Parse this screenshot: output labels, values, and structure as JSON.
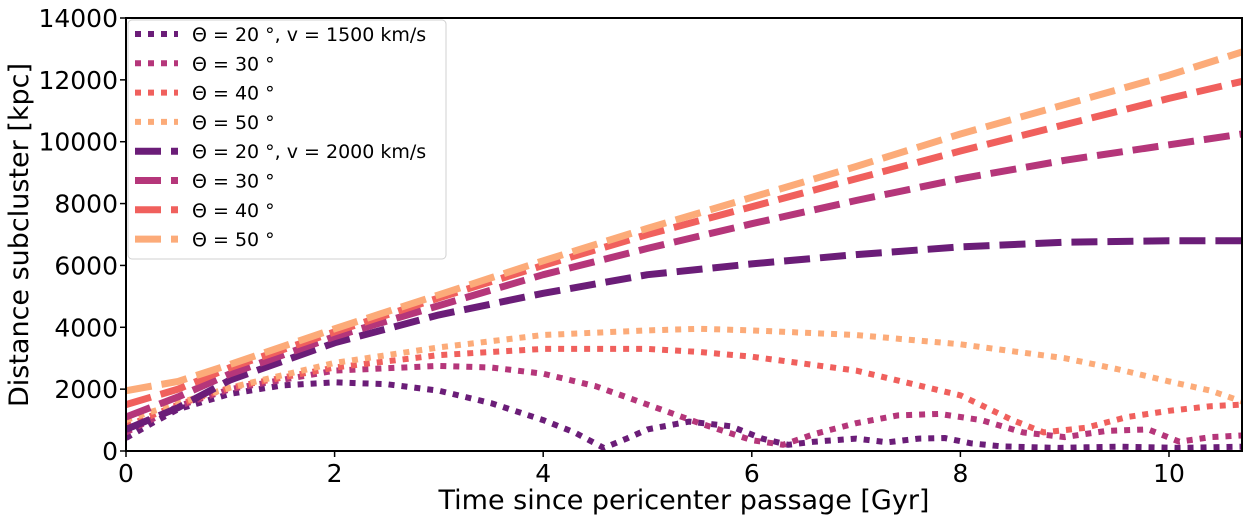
{
  "chart_data": {
    "type": "line",
    "title": "",
    "xlabel": "Time since pericenter passage [Gyr]",
    "ylabel": "Distance subcluster [kpc]",
    "xlim": [
      0,
      10.7
    ],
    "ylim": [
      0,
      14000
    ],
    "xticks": [
      0,
      2,
      4,
      6,
      8,
      10
    ],
    "xtick_labels": [
      "0",
      "2",
      "4",
      "6",
      "8",
      "10"
    ],
    "yticks": [
      0,
      2000,
      4000,
      6000,
      8000,
      10000,
      12000,
      14000
    ],
    "ytick_labels": [
      "0",
      "2000",
      "4000",
      "6000",
      "8000",
      "10000",
      "12000",
      "14000"
    ],
    "grid": false,
    "legend_position": "top-left",
    "colors": {
      "theta20": "#6b1d78",
      "theta30": "#b5367a",
      "theta40": "#f0605d",
      "theta50": "#fcab79",
      "frame": "#000000"
    },
    "series": [
      {
        "name": "Θ = 20$^\\circ$, v = 1500 km/s",
        "legend_label": "Θ = 20 °, v = 1500 km/s",
        "style": "dotted",
        "color_key": "theta20",
        "x": [
          0,
          0.25,
          0.5,
          1,
          1.5,
          2,
          2.5,
          3,
          3.5,
          4,
          4.3,
          4.58,
          4.8,
          5,
          5.4,
          5.8,
          6.1,
          6.35,
          6.6,
          7,
          7.3,
          7.6,
          7.85,
          8.1,
          8.4,
          8.7,
          8.95,
          9.2,
          9.5,
          9.8,
          10.1,
          10.4,
          10.7
        ],
        "y": [
          420,
          900,
          1350,
          1850,
          2120,
          2220,
          2160,
          1950,
          1550,
          1000,
          600,
          100,
          400,
          700,
          950,
          800,
          400,
          200,
          300,
          400,
          280,
          400,
          420,
          250,
          150,
          120,
          100,
          120,
          140,
          120,
          100,
          120,
          140
        ]
      },
      {
        "name": "Θ = 30°",
        "legend_label": "Θ = 30 °",
        "style": "dotted",
        "color_key": "theta30",
        "x": [
          0,
          0.5,
          1,
          2,
          3,
          3.5,
          4,
          4.5,
          5,
          5.5,
          6,
          6.3,
          6.6,
          7,
          7.4,
          7.8,
          8.2,
          8.6,
          9,
          9.4,
          9.8,
          10.1,
          10.4,
          10.7
        ],
        "y": [
          600,
          1450,
          2000,
          2600,
          2750,
          2700,
          2500,
          2100,
          1500,
          900,
          350,
          200,
          550,
          900,
          1150,
          1200,
          1000,
          600,
          450,
          650,
          700,
          300,
          450,
          500
        ]
      },
      {
        "name": "Θ = 40°",
        "legend_label": "Θ = 40 °",
        "style": "dotted",
        "color_key": "theta40",
        "x": [
          0,
          0.5,
          1,
          2,
          3,
          4,
          5,
          5.5,
          6,
          7,
          8,
          8.5,
          8.8,
          9.2,
          9.6,
          10,
          10.4,
          10.7
        ],
        "y": [
          800,
          1500,
          2050,
          2700,
          3100,
          3300,
          3300,
          3200,
          3050,
          2600,
          1800,
          1000,
          600,
          750,
          1100,
          1300,
          1450,
          1500
        ]
      },
      {
        "name": "Θ = 50°",
        "legend_label": "Θ = 50 °",
        "style": "dotted",
        "color_key": "theta50",
        "x": [
          0,
          0.5,
          1,
          2,
          3,
          4,
          5,
          5.5,
          6,
          7,
          8,
          9,
          9.5,
          10,
          10.4,
          10.7
        ],
        "y": [
          1000,
          1550,
          2050,
          2850,
          3350,
          3750,
          3900,
          3950,
          3900,
          3750,
          3450,
          3000,
          2650,
          2250,
          1950,
          1600
        ]
      },
      {
        "name": "Θ = 20°, v = 2000 km/s",
        "legend_label": "Θ = 20 °, v = 2000 km/s",
        "style": "dashed",
        "color_key": "theta20",
        "x": [
          0,
          0.5,
          1,
          2,
          3,
          4,
          5,
          6,
          7,
          8,
          9,
          10,
          10.7
        ],
        "y": [
          700,
          1400,
          2300,
          3500,
          4400,
          5100,
          5700,
          6050,
          6350,
          6600,
          6750,
          6800,
          6800
        ]
      },
      {
        "name": "Θ = 30°",
        "legend_label": "Θ = 30 °",
        "style": "dashed",
        "color_key": "theta30",
        "x": [
          0,
          0.5,
          1,
          2,
          3,
          4,
          5,
          6,
          7,
          8,
          9,
          10,
          10.7
        ],
        "y": [
          1100,
          1750,
          2500,
          3700,
          4700,
          5700,
          6550,
          7350,
          8100,
          8800,
          9400,
          9900,
          10250
        ]
      },
      {
        "name": "Θ = 40°",
        "legend_label": "Θ = 40 °",
        "style": "dashed",
        "color_key": "theta40",
        "x": [
          0,
          0.5,
          1,
          2,
          3,
          4,
          5,
          6,
          7,
          8,
          9,
          10,
          10.7
        ],
        "y": [
          1500,
          2000,
          2700,
          3850,
          4950,
          6000,
          7000,
          7900,
          8800,
          9700,
          10550,
          11400,
          11950
        ]
      },
      {
        "name": "Θ = 50°",
        "legend_label": "Θ = 50 °",
        "style": "dashed",
        "color_key": "theta50",
        "x": [
          0,
          0.5,
          1,
          2,
          3,
          4,
          5,
          6,
          7,
          8,
          9,
          10,
          10.7
        ],
        "y": [
          1950,
          2250,
          2800,
          3950,
          5050,
          6150,
          7200,
          8200,
          9200,
          10250,
          11200,
          12150,
          12900
        ]
      }
    ]
  }
}
